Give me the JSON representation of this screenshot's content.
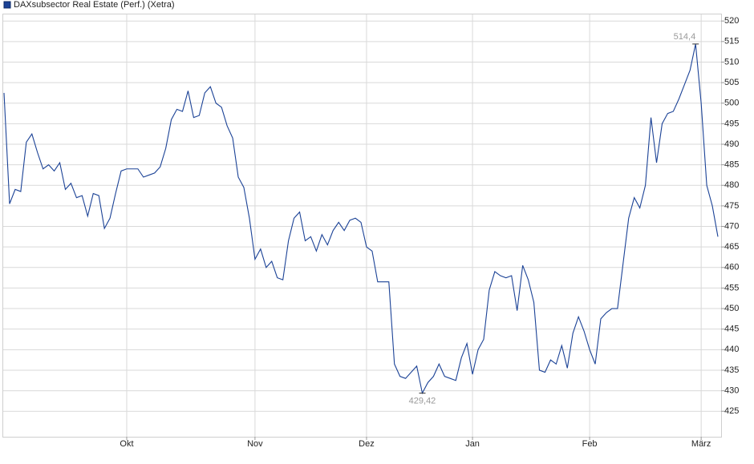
{
  "chart_data": {
    "type": "line",
    "series": [
      {
        "name": "DAXsubsector Real Estate (Perf.) (Xetra)",
        "color": "#1b4296",
        "values": [
          502.5,
          475.5,
          479,
          478.5,
          490.5,
          492.5,
          488,
          484,
          485,
          483.5,
          485.5,
          479,
          480.5,
          477,
          477.5,
          472.5,
          478,
          477.5,
          469.5,
          472,
          478,
          483.5,
          484,
          484,
          484,
          482,
          482.5,
          483,
          484.5,
          489,
          496,
          498.5,
          498,
          503,
          496.5,
          497,
          502.5,
          504,
          500,
          499,
          494.5,
          491.5,
          482,
          479.5,
          472,
          462,
          464.5,
          460,
          461.5,
          457.5,
          457,
          466.5,
          472,
          473.5,
          466.5,
          467.5,
          464,
          468,
          465.5,
          469,
          471,
          469,
          471.5,
          472,
          471,
          465,
          464,
          456.5,
          456.5,
          456.5,
          436.5,
          433.5,
          433,
          434.5,
          436,
          429.42,
          432,
          433.5,
          436.5,
          433.5,
          433,
          432.5,
          438,
          441.5,
          434,
          440,
          442.5,
          454.5,
          459,
          458,
          457.5,
          458,
          449.5,
          460.5,
          457,
          451.5,
          435,
          434.5,
          437.5,
          436.5,
          441,
          435.5,
          444,
          448,
          444.5,
          440,
          436.5,
          447.5,
          449,
          450,
          450,
          461,
          472,
          477,
          474.5,
          480,
          496.5,
          485.5,
          495,
          497.5,
          498,
          501,
          504.5,
          508,
          514.4,
          500,
          480,
          475,
          467.5
        ]
      }
    ],
    "categories": [
      null,
      null,
      null,
      null,
      null,
      null,
      null,
      null,
      null,
      null,
      null,
      null,
      null,
      null,
      null,
      null,
      null,
      null,
      null,
      null,
      null,
      null,
      "Okt",
      null,
      null,
      null,
      null,
      null,
      null,
      null,
      null,
      null,
      null,
      null,
      null,
      null,
      null,
      null,
      null,
      null,
      null,
      null,
      null,
      null,
      null,
      "Nov",
      null,
      null,
      null,
      null,
      null,
      null,
      null,
      null,
      null,
      null,
      null,
      null,
      null,
      null,
      null,
      null,
      null,
      null,
      null,
      "Dez",
      null,
      null,
      null,
      null,
      null,
      null,
      null,
      null,
      null,
      null,
      null,
      null,
      null,
      null,
      null,
      null,
      null,
      null,
      "Jan",
      null,
      null,
      null,
      null,
      null,
      null,
      null,
      null,
      null,
      null,
      null,
      null,
      null,
      null,
      null,
      null,
      null,
      null,
      null,
      null,
      "Feb",
      null,
      null,
      null,
      null,
      null,
      null,
      null,
      null,
      null,
      null,
      null,
      null,
      null,
      null,
      null,
      null,
      null,
      null,
      null,
      "März",
      null,
      null,
      null
    ],
    "annotations": [
      {
        "text": "514,4",
        "value": 514.4
      },
      {
        "text": "429,42",
        "value": 429.42
      }
    ],
    "ylim": [
      418.8,
      521.6
    ],
    "yticks": [
      425,
      430,
      435,
      440,
      445,
      450,
      455,
      460,
      465,
      470,
      475,
      480,
      485,
      490,
      495,
      500,
      505,
      510,
      515,
      520
    ],
    "grid": true
  }
}
